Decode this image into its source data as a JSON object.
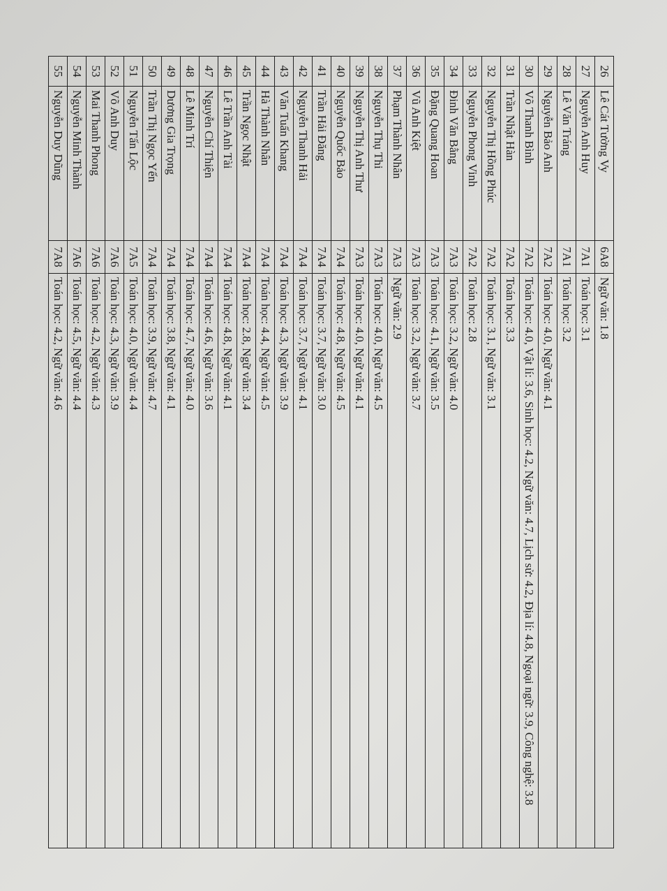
{
  "rows": [
    {
      "no": "26",
      "name": "Lê Cát Tường Vy",
      "class": "6A8",
      "scores": "Ngữ văn: 1.8"
    },
    {
      "no": "27",
      "name": "Nguyễn Anh Huy",
      "class": "7A1",
      "scores": "Toán học: 3.1"
    },
    {
      "no": "28",
      "name": "Lê Văn Tráng",
      "class": "7A1",
      "scores": "Toán học: 3.2"
    },
    {
      "no": "29",
      "name": "Nguyễn Bảo Anh",
      "class": "7A2",
      "scores": "Toán học: 4.0, Ngữ văn: 4.1"
    },
    {
      "no": "30",
      "name": "Võ Thanh Bình",
      "class": "7A2",
      "scores": "Toán học: 4.0, Vật lí: 3.6, Sinh học: 4.2, Ngữ văn: 4.7, Lịch sử: 4.2, Địa lí: 4.8, Ngoại ngữ: 3.9, Công nghệ: 3.8"
    },
    {
      "no": "31",
      "name": "Trần Nhật Hàn",
      "class": "7A2",
      "scores": "Toán học: 3.3"
    },
    {
      "no": "32",
      "name": "Nguyễn Thị Hồng Phúc",
      "class": "7A2",
      "scores": "Toán học: 3.1, Ngữ văn: 3.1"
    },
    {
      "no": "33",
      "name": "Nguyễn Phong Vinh",
      "class": "7A2",
      "scores": "Toán học: 2.8"
    },
    {
      "no": "34",
      "name": "Đinh Văn Bằng",
      "class": "7A3",
      "scores": "Toán học: 3.2, Ngữ văn: 4.0"
    },
    {
      "no": "35",
      "name": "Đặng Quang Hoan",
      "class": "7A3",
      "scores": "Toán học: 4.1, Ngữ văn: 3.5"
    },
    {
      "no": "36",
      "name": "Vũ Anh Kiệt",
      "class": "7A3",
      "scores": "Toán học: 3.2, Ngữ văn: 3.7"
    },
    {
      "no": "37",
      "name": "Phạm Thành Nhân",
      "class": "7A3",
      "scores": "Ngữ văn: 2.9"
    },
    {
      "no": "38",
      "name": "Nguyễn Thụ Thi",
      "class": "7A3",
      "scores": "Toán học: 4.0, Ngữ văn: 4.5"
    },
    {
      "no": "39",
      "name": "Nguyễn Thị Anh Thư",
      "class": "7A3",
      "scores": "Toán học: 4.0, Ngữ văn: 4.1"
    },
    {
      "no": "40",
      "name": "Nguyễn Quốc Bảo",
      "class": "7A4",
      "scores": "Toán học: 4.8, Ngữ văn: 4.5"
    },
    {
      "no": "41",
      "name": "Trần Hải Đăng",
      "class": "7A4",
      "scores": "Toán học: 3.7, Ngữ văn: 3.0"
    },
    {
      "no": "42",
      "name": "Nguyễn Thanh Hải",
      "class": "7A4",
      "scores": "Toán học: 3.7, Ngữ văn: 4.1"
    },
    {
      "no": "43",
      "name": "Văn Tuấn Khang",
      "class": "7A4",
      "scores": "Toán học: 4.3, Ngữ văn: 3.9"
    },
    {
      "no": "44",
      "name": "Hà Thành Nhân",
      "class": "7A4",
      "scores": "Toán học: 4.4, Ngữ văn: 4.5"
    },
    {
      "no": "45",
      "name": "Trần Ngọc Nhật",
      "class": "7A4",
      "scores": "Toán học: 2.8, Ngữ văn: 3.4"
    },
    {
      "no": "46",
      "name": "Lê Trần Anh Tài",
      "class": "7A4",
      "scores": "Toán học: 4.8, Ngữ văn: 4.1"
    },
    {
      "no": "47",
      "name": "Nguyễn Chí Thiện",
      "class": "7A4",
      "scores": "Toán học: 4.6, Ngữ văn: 3.6"
    },
    {
      "no": "48",
      "name": "Lê Minh Trí",
      "class": "7A4",
      "scores": "Toán học: 4.7, Ngữ văn: 4.0"
    },
    {
      "no": "49",
      "name": "Dương Gia Trọng",
      "class": "7A4",
      "scores": "Toán học: 3.8, Ngữ văn: 4.1"
    },
    {
      "no": "50",
      "name": "Trần Thị Ngọc Yến",
      "class": "7A4",
      "scores": "Toán học: 3.9, Ngữ văn: 4.7"
    },
    {
      "no": "51",
      "name": "Nguyễn Tấn Lộc",
      "class": "7A5",
      "scores": "Toán học: 4.0, Ngữ văn: 4.4"
    },
    {
      "no": "52",
      "name": "Võ Anh Duy",
      "class": "7A6",
      "scores": "Toán học: 4.3, Ngữ văn: 3.9"
    },
    {
      "no": "53",
      "name": "Mai Thanh Phong",
      "class": "7A6",
      "scores": "Toán học: 4.2, Ngữ văn: 4.3"
    },
    {
      "no": "54",
      "name": "Nguyễn Minh Thành",
      "class": "7A6",
      "scores": "Toán học: 4.5, Ngữ văn: 4.4"
    },
    {
      "no": "55",
      "name": "Nguyễn Duy Dũng",
      "class": "7A8",
      "scores": "Toán học: 4.2, Ngữ văn: 4.6"
    }
  ]
}
